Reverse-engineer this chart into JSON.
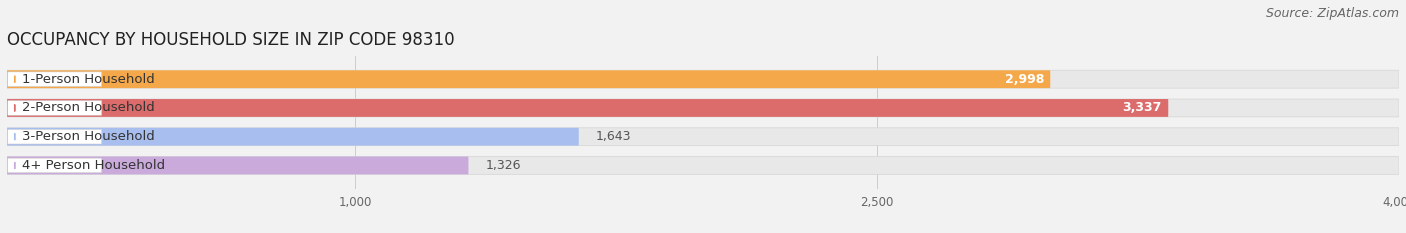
{
  "title": "OCCUPANCY BY HOUSEHOLD SIZE IN ZIP CODE 98310",
  "source_text": "Source: ZipAtlas.com",
  "categories": [
    "1-Person Household",
    "2-Person Household",
    "3-Person Household",
    "4+ Person Household"
  ],
  "values": [
    2998,
    3337,
    1643,
    1326
  ],
  "bar_colors": [
    "#F5A84A",
    "#DC6B6B",
    "#A8BEEF",
    "#C9AADB"
  ],
  "label_bg_colors": [
    "#FFFFFF",
    "#FFFFFF",
    "#FFFFFF",
    "#FFFFFF"
  ],
  "label_left_dot_colors": [
    "#F5A84A",
    "#DC6B6B",
    "#A8BEEF",
    "#C9AADB"
  ],
  "value_label_colors": [
    "#FFFFFF",
    "#FFFFFF",
    "#555555",
    "#555555"
  ],
  "xlim": [
    0,
    4000
  ],
  "xticks": [
    1000,
    2500,
    4000
  ],
  "title_fontsize": 12,
  "source_fontsize": 9,
  "bar_label_fontsize": 9,
  "category_fontsize": 9.5,
  "background_color": "#F2F2F2",
  "track_color": "#E8E8E8",
  "track_edge_color": "#D8D8D8",
  "bar_height": 0.62,
  "bar_gap": 0.38
}
